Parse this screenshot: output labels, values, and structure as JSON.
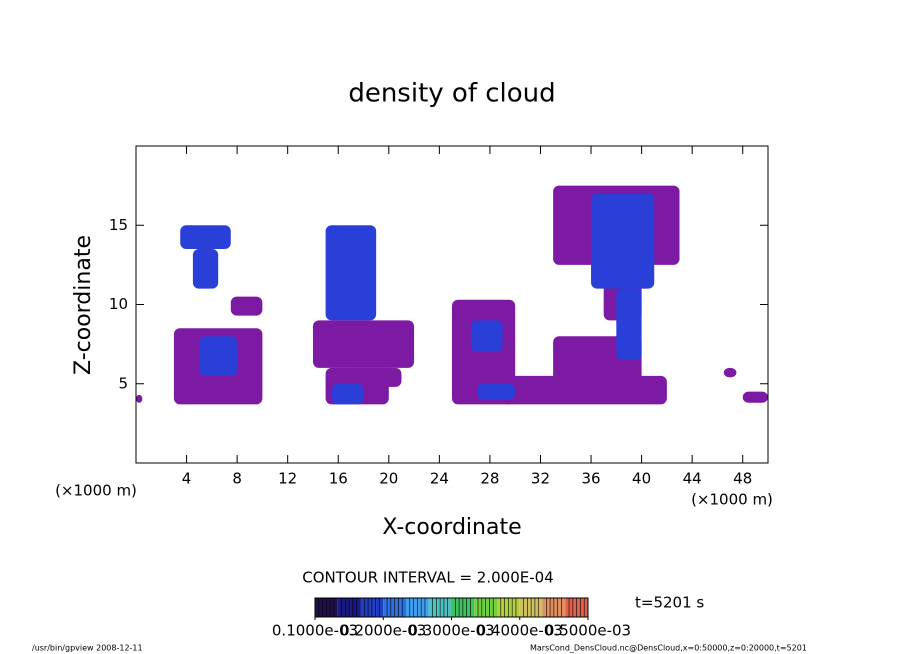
{
  "chart_data": {
    "type": "contour",
    "title": "density of cloud",
    "xlabel": "X-coordinate",
    "ylabel": "Z-coordinate",
    "xunit": "(×1000 m)",
    "yunit": "(×1000 m)",
    "xlim": [
      0,
      50
    ],
    "ylim": [
      0,
      20
    ],
    "xticks": [
      4,
      8,
      12,
      16,
      20,
      24,
      28,
      32,
      36,
      40,
      44,
      48
    ],
    "yticks": [
      5,
      10,
      15
    ],
    "patches": [
      {
        "x": [
          3,
          10
        ],
        "z": [
          3.7,
          8.5
        ],
        "value": 0.0001,
        "color": "#7d1aa3"
      },
      {
        "x": [
          7.5,
          10
        ],
        "z": [
          9.3,
          10.5
        ],
        "value": 0.0001,
        "color": "#7d1aa3"
      },
      {
        "x": [
          0,
          0.5
        ],
        "z": [
          3.8,
          4.3
        ],
        "value": 0.0001,
        "color": "#7d1aa3"
      },
      {
        "x": [
          14,
          22
        ],
        "z": [
          6,
          9
        ],
        "value": 0.0001,
        "color": "#7d1aa3"
      },
      {
        "x": [
          15,
          20
        ],
        "z": [
          3.7,
          6
        ],
        "value": 0.0001,
        "color": "#7d1aa3"
      },
      {
        "x": [
          17,
          21
        ],
        "z": [
          4.8,
          6
        ],
        "value": 0.0001,
        "color": "#7d1aa3"
      },
      {
        "x": [
          25,
          30
        ],
        "z": [
          3.7,
          10.3
        ],
        "value": 0.0001,
        "color": "#7d1aa3"
      },
      {
        "x": [
          29,
          42
        ],
        "z": [
          3.7,
          5.5
        ],
        "value": 0.0001,
        "color": "#7d1aa3"
      },
      {
        "x": [
          33,
          40
        ],
        "z": [
          5,
          8
        ],
        "value": 0.0001,
        "color": "#7d1aa3"
      },
      {
        "x": [
          33,
          43
        ],
        "z": [
          12.5,
          17.5
        ],
        "value": 0.0001,
        "color": "#7d1aa3"
      },
      {
        "x": [
          37,
          40
        ],
        "z": [
          9,
          12
        ],
        "value": 0.0001,
        "color": "#7d1aa3"
      },
      {
        "x": [
          46.5,
          47.5
        ],
        "z": [
          5.4,
          6
        ],
        "value": 0.0001,
        "color": "#7d1aa3"
      },
      {
        "x": [
          48,
          50
        ],
        "z": [
          3.8,
          4.5
        ],
        "value": 0.0001,
        "color": "#7d1aa3"
      },
      {
        "x": [
          3.5,
          7.5
        ],
        "z": [
          13.5,
          15
        ],
        "value": 0.0002,
        "color": "#2a3fd8"
      },
      {
        "x": [
          4.5,
          6.5
        ],
        "z": [
          11,
          13.5
        ],
        "value": 0.0002,
        "color": "#2a3fd8"
      },
      {
        "x": [
          5,
          8
        ],
        "z": [
          5.5,
          8
        ],
        "value": 0.0002,
        "color": "#2a3fd8"
      },
      {
        "x": [
          15,
          19
        ],
        "z": [
          9,
          15
        ],
        "value": 0.0002,
        "color": "#2a3fd8"
      },
      {
        "x": [
          15.5,
          18
        ],
        "z": [
          3.7,
          5
        ],
        "value": 0.0002,
        "color": "#2a3fd8"
      },
      {
        "x": [
          26.5,
          29
        ],
        "z": [
          7,
          9
        ],
        "value": 0.0002,
        "color": "#2a3fd8"
      },
      {
        "x": [
          27,
          30
        ],
        "z": [
          4,
          5
        ],
        "value": 0.0002,
        "color": "#2a3fd8"
      },
      {
        "x": [
          36,
          41
        ],
        "z": [
          11,
          17
        ],
        "value": 0.0002,
        "color": "#2a3fd8"
      },
      {
        "x": [
          38,
          40
        ],
        "z": [
          6.5,
          11
        ],
        "value": 0.0002,
        "color": "#2a3fd8"
      }
    ],
    "contour_interval": "CONTOUR INTERVAL = 2.000E-04",
    "time_label": "t=5201 s",
    "colorbar": {
      "lim": [
        0.0001,
        0.0005
      ],
      "colors": [
        "#20104a",
        "#1a1a80",
        "#1f3fc0",
        "#2f6fe0",
        "#40a0f0",
        "#50c0c0",
        "#40c060",
        "#70d040",
        "#b0d040",
        "#d0c060",
        "#e09060",
        "#e06050"
      ],
      "ticks": [
        {
          "value": 0.0001,
          "label": "0.1000e-03"
        },
        {
          "value": 0.0002,
          "label": "0.2000e-03"
        },
        {
          "value": 0.0003,
          "label": "0.3000e-03"
        },
        {
          "value": 0.0004,
          "label": "0.4000e-03"
        },
        {
          "value": 0.0005,
          "label": "0.5000e-03"
        }
      ]
    },
    "footer_left": "/usr/bin/gpview   2008-12-11",
    "footer_right": "MarsCond_DensCloud.nc@DensCloud,x=0:50000,z=0:20000,t=5201"
  }
}
